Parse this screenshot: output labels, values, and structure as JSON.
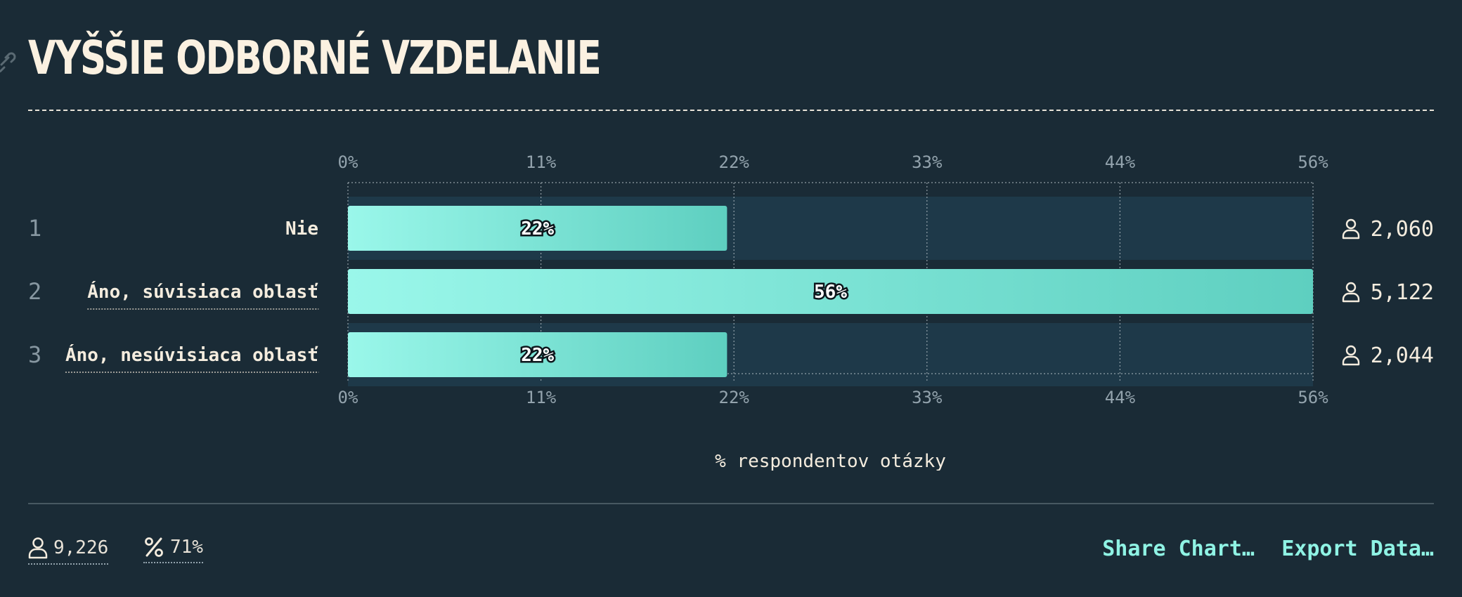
{
  "page": {
    "title": "VYŠŠIE ODBORNÉ VZDELANIE"
  },
  "chart_data": {
    "type": "bar",
    "orientation": "horizontal",
    "categories": [
      "Nie",
      "Áno, súvisiaca oblasť",
      "Áno, nesúvisiaca oblasť"
    ],
    "row_numbers": [
      "1",
      "2",
      "3"
    ],
    "values": [
      22,
      56,
      22
    ],
    "value_labels": [
      "22%",
      "56%",
      "22%"
    ],
    "counts": [
      "2,060",
      "5,122",
      "2,044"
    ],
    "xticks": [
      "0%",
      "11%",
      "22%",
      "33%",
      "44%",
      "56%"
    ],
    "xlim": [
      0,
      56
    ],
    "xlabel": "% respondentov otázky",
    "grid": true,
    "colors": {
      "bar_start": "#9af7ea",
      "bar_end": "#5ecfc0",
      "track": "#1e3949",
      "background": "#1a2b36"
    }
  },
  "footer": {
    "respondents": "9,226",
    "response_rate": "71%",
    "share_label": "Share Chart…",
    "export_label": "Export Data…"
  },
  "icons": {
    "link": "link-icon",
    "person": "person-icon",
    "percent": "percent-icon"
  }
}
